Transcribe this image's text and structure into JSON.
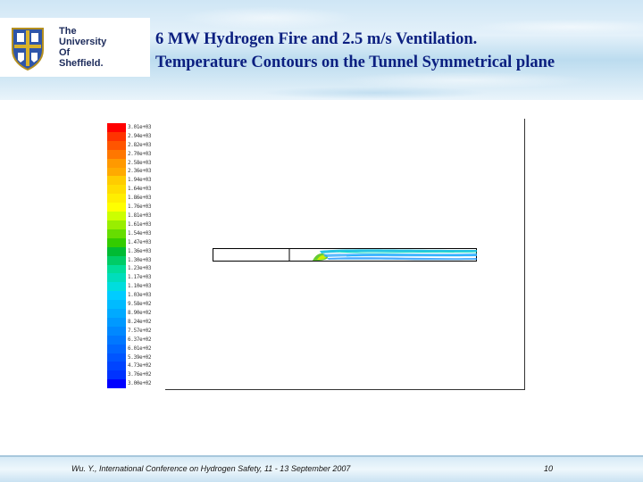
{
  "header": {
    "institution_name": "The\nUniversity\nOf\nSheffield.",
    "title_line1": "6 MW Hydrogen Fire and 2.5 m/s Ventilation.",
    "title_line2": "Temperature Contours on the Tunnel Symmetrical plane"
  },
  "legend": {
    "colors": [
      "#ff0000",
      "#ff3300",
      "#ff5500",
      "#ff7700",
      "#ff9900",
      "#ffaa00",
      "#ffcc00",
      "#ffdd00",
      "#ffee00",
      "#ffff00",
      "#ccff00",
      "#99ee00",
      "#66dd00",
      "#33cc00",
      "#00bb33",
      "#00cc66",
      "#00dd99",
      "#00ddbb",
      "#00dddd",
      "#00ccff",
      "#00bbff",
      "#00aaff",
      "#0099ff",
      "#0088ff",
      "#0077ff",
      "#0066ff",
      "#0055ff",
      "#0044ff",
      "#0033ff",
      "#0000ff"
    ],
    "labels": [
      "3.01e+03",
      "2.94e+03",
      "2.82e+03",
      "2.70e+03",
      "2.58e+03",
      "2.36e+03",
      "1.94e+03",
      "1.64e+03",
      "1.86e+03",
      "1.76e+03",
      "1.81e+03",
      "1.61e+03",
      "1.54e+03",
      "1.47e+03",
      "1.36e+03",
      "1.30e+03",
      "1.23e+03",
      "1.17e+03",
      "1.10e+03",
      "1.03e+03",
      "9.58e+02",
      "8.90e+02",
      "8.24e+02",
      "7.57e+02",
      "6.37e+02",
      "6.01e+02",
      "5.39e+02",
      "4.73e+02",
      "3.76e+02",
      "3.00e+02"
    ]
  },
  "footer": {
    "citation": "Wu. Y., International Conference on Hydrogen Safety, 11 - 13 September 2007",
    "page_number": "10"
  },
  "colors": {
    "title": "#0b1f80",
    "crest_blue": "#2e55a8",
    "crest_gold": "#d9b22a"
  }
}
